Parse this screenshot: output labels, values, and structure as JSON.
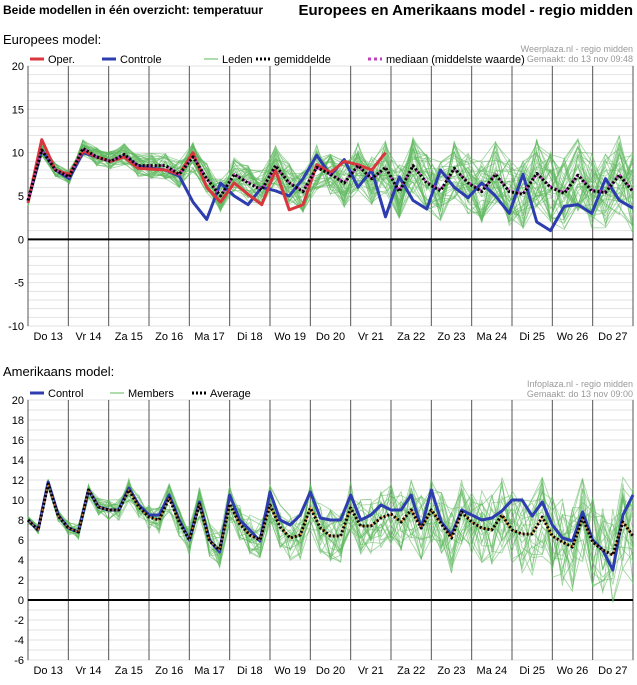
{
  "header": {
    "left_title": "Beide modellen in één overzicht: temperatuur",
    "right_title": "Europees en Amerikaans model - regio midden"
  },
  "colors": {
    "oper": "#d9363e",
    "control": "#2d3db0",
    "members": "#5cb85c",
    "mean": "#000000",
    "median": "#c040c0",
    "grid": "#e2e2e2"
  },
  "chart_data": [
    {
      "type": "line",
      "title": "Europees model:",
      "source_line1": "Weerplaza.nl - regio midden",
      "source_line2": "Gemaakt: do 13 nov 09:48",
      "ylim": [
        -10,
        20
      ],
      "yticks": [
        20,
        15,
        10,
        5,
        0,
        -5,
        -10
      ],
      "x_labels": [
        "Do 13",
        "Vr 14",
        "Za 15",
        "Zo 16",
        "Ma 17",
        "Di 18",
        "Wo 19",
        "Do 20",
        "Vr 21",
        "Za 22",
        "Zo 23",
        "Ma 24",
        "Di 25",
        "Wo 26",
        "Do 27"
      ],
      "legend": [
        "Oper.",
        "Controle",
        "Leden",
        "gemiddelde",
        "mediaan (middelste waarde)"
      ],
      "series": [
        {
          "name": "Controle",
          "values": [
            4.4,
            10.3,
            8,
            7,
            10,
            9.5,
            9,
            9.6,
            8.5,
            8.2,
            8,
            7.3,
            4.3,
            2.3,
            6.5,
            5,
            4,
            6,
            5.6,
            5,
            7,
            9.7,
            7.4,
            9.2,
            6,
            8,
            2.6,
            7.2,
            4.5,
            3.5,
            8,
            6,
            4.8,
            6.5,
            5,
            3,
            7.5,
            2,
            1,
            3.8,
            4,
            3,
            7,
            4.5,
            3.6
          ]
        },
        {
          "name": "Oper.",
          "values": [
            4.2,
            11.5,
            8,
            7.5,
            10.2,
            9.5,
            9,
            9.5,
            8.2,
            8.1,
            8,
            7.5,
            10,
            6,
            4.3,
            6.5,
            5.2,
            4,
            8,
            3.4,
            4,
            8.6,
            7.7,
            9,
            8.6,
            8,
            10
          ]
        },
        {
          "name": "gemiddelde",
          "values": [
            4.5,
            10.3,
            8,
            7.2,
            10.5,
            9.5,
            9,
            9.8,
            8.5,
            8.5,
            8.5,
            7.5,
            9.5,
            7,
            5,
            7.5,
            6.5,
            5.7,
            8.5,
            6.5,
            5.5,
            8.3,
            7.5,
            6.5,
            8.5,
            7,
            8.3,
            5.5,
            8.5,
            6.5,
            5.6,
            8.2,
            6.5,
            5.5,
            7.5,
            5.5,
            5.2,
            7.6,
            6,
            5.3,
            7.4,
            5.6,
            5.4,
            7.4,
            5.5
          ]
        },
        {
          "name": "mediaan (middelste waarde)",
          "values": [
            4.5,
            10.3,
            8,
            7.2,
            10.5,
            9.5,
            9,
            9.8,
            8.5,
            8.5,
            8.5,
            7.5,
            9.5,
            7,
            5,
            7.5,
            6.6,
            5.8,
            8.4,
            6.5,
            5.6,
            8.3,
            7.5,
            6.6,
            8.4,
            7,
            8.2,
            5.6,
            8.4,
            6.6,
            5.7,
            8.1,
            6.6,
            5.6,
            7.5,
            5.6,
            5.3,
            7.6,
            6.1,
            5.4,
            7.5,
            5.7,
            5.5,
            7.5,
            5.6
          ]
        }
      ]
    },
    {
      "type": "line",
      "title": "Amerikaans model:",
      "source_line1": "Infoplaza.nl - regio midden",
      "source_line2": "Gemaakt: do 13 nov 09:00",
      "ylim": [
        -6,
        20
      ],
      "yticks": [
        20,
        18,
        16,
        14,
        12,
        10,
        8,
        6,
        4,
        2,
        0,
        -2,
        -4,
        -6
      ],
      "x_labels": [
        "Do 13",
        "Vr 14",
        "Za 15",
        "Zo 16",
        "Ma 17",
        "Di 18",
        "Wo 19",
        "Do 20",
        "Vr 21",
        "Za 22",
        "Zo 23",
        "Ma 24",
        "Di 25",
        "Wo 26",
        "Do 27"
      ],
      "legend": [
        "Control",
        "Members",
        "Average"
      ],
      "series": [
        {
          "name": "Control",
          "values": [
            8,
            7,
            11.8,
            8.5,
            7.2,
            6.8,
            11,
            9.3,
            9,
            9,
            11.2,
            9.5,
            8.5,
            8.5,
            10.5,
            8,
            6,
            9.8,
            6,
            4.8,
            10.5,
            8,
            7,
            5.9,
            10.8,
            8,
            7.5,
            8.5,
            10.8,
            8.2,
            8,
            8,
            10.5,
            8,
            8.5,
            9.5,
            9,
            9,
            10.5,
            7.2,
            11,
            7.8,
            6.5,
            9,
            8.5,
            8,
            8.2,
            8.9,
            10,
            10,
            8.4,
            9.8,
            7.5,
            6.2,
            5.9,
            8.8,
            6,
            5,
            3,
            8.5,
            10.5
          ]
        },
        {
          "name": "Average",
          "values": [
            8,
            7,
            11.6,
            8.4,
            7.2,
            6.8,
            11,
            9.3,
            9,
            9,
            11,
            9.3,
            8.3,
            8,
            10.2,
            7.8,
            6,
            9.6,
            5.9,
            5,
            9.6,
            7.6,
            6.5,
            6,
            9.5,
            7.3,
            6.2,
            6.5,
            9.2,
            7.2,
            6.4,
            6.4,
            9.2,
            7.4,
            7.4,
            8.2,
            8.6,
            7.8,
            9,
            7.2,
            9,
            7.6,
            6.2,
            8.8,
            7.8,
            7.2,
            7,
            8.5,
            7,
            6.6,
            6.6,
            8.3,
            6.4,
            5.8,
            5.3,
            8.2,
            5.8,
            5,
            4.5,
            7.8,
            6.4
          ]
        }
      ]
    }
  ]
}
